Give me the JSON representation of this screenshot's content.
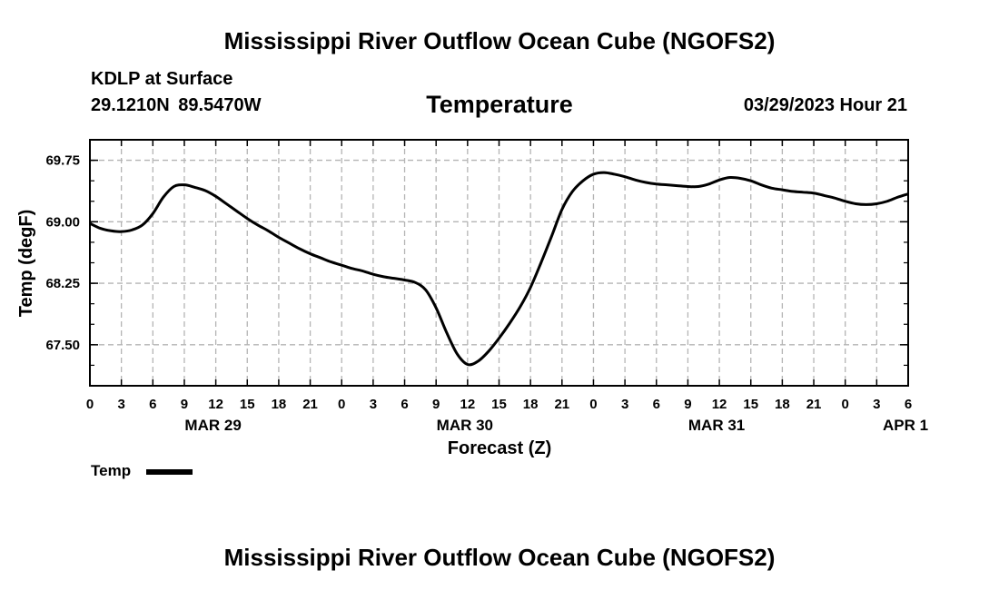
{
  "header": {
    "title_top": "Mississippi River Outflow Ocean Cube (NGOFS2)",
    "title_bottom": "Mississippi River Outflow Ocean Cube (NGOFS2)",
    "station": "KDLP at Surface",
    "coordinates": "29.1210N  89.5470W",
    "parameter": "Temperature",
    "datetime": "03/29/2023 Hour 21"
  },
  "legend": {
    "label": "Temp",
    "color": "#000000"
  },
  "chart_data": {
    "type": "line",
    "title": "Temperature",
    "xlabel": "Forecast (Z)",
    "ylabel": "Temp (degF)",
    "xlim": [
      0,
      78
    ],
    "ylim": [
      67.0,
      70.0
    ],
    "grid": true,
    "y_ticks": [
      67.5,
      68.25,
      69.0,
      69.75
    ],
    "y_tick_labels": [
      "67.50",
      "68.25",
      "69.00",
      "69.75"
    ],
    "x_ticks": [
      0,
      3,
      6,
      9,
      12,
      15,
      18,
      21,
      24,
      27,
      30,
      33,
      36,
      39,
      42,
      45,
      48,
      51,
      54,
      57,
      60,
      63,
      66,
      69,
      72,
      75,
      78
    ],
    "x_tick_labels": [
      "0",
      "3",
      "6",
      "9",
      "12",
      "15",
      "18",
      "21",
      "0",
      "3",
      "6",
      "9",
      "12",
      "15",
      "18",
      "21",
      "0",
      "3",
      "6",
      "9",
      "12",
      "15",
      "18",
      "21",
      "0",
      "3",
      "6"
    ],
    "date_labels": [
      {
        "x": 12,
        "label": "MAR 29"
      },
      {
        "x": 36,
        "label": "MAR 30"
      },
      {
        "x": 60,
        "label": "MAR 31"
      },
      {
        "x": 78,
        "label": "APR 1"
      }
    ],
    "series": [
      {
        "name": "Temp",
        "color": "#000000",
        "x": [
          0,
          1,
          2,
          3,
          4,
          5,
          6,
          7,
          8,
          9,
          10,
          11,
          12,
          13,
          14,
          15,
          16,
          17,
          18,
          19,
          20,
          21,
          22,
          23,
          24,
          25,
          26,
          27,
          28,
          29,
          30,
          31,
          32,
          33,
          34,
          35,
          36,
          37,
          38,
          39,
          40,
          41,
          42,
          43,
          44,
          45,
          46,
          47,
          48,
          49,
          50,
          51,
          52,
          53,
          54,
          55,
          56,
          57,
          58,
          59,
          60,
          61,
          62,
          63,
          64,
          65,
          66,
          67,
          68,
          69,
          70,
          71,
          72,
          73,
          74,
          75,
          76,
          77,
          78
        ],
        "values": [
          68.98,
          68.92,
          68.89,
          68.88,
          68.9,
          68.96,
          69.1,
          69.3,
          69.43,
          69.45,
          69.42,
          69.38,
          69.31,
          69.22,
          69.13,
          69.04,
          68.96,
          68.89,
          68.81,
          68.74,
          68.67,
          68.61,
          68.56,
          68.51,
          68.47,
          68.43,
          68.4,
          68.36,
          68.33,
          68.31,
          68.29,
          68.26,
          68.17,
          67.95,
          67.65,
          67.39,
          67.26,
          67.3,
          67.42,
          67.58,
          67.76,
          67.96,
          68.2,
          68.5,
          68.82,
          69.15,
          69.37,
          69.5,
          69.58,
          69.6,
          69.58,
          69.55,
          69.51,
          69.48,
          69.46,
          69.45,
          69.44,
          69.43,
          69.43,
          69.46,
          69.51,
          69.54,
          69.53,
          69.5,
          69.45,
          69.41,
          69.39,
          69.37,
          69.36,
          69.35,
          69.32,
          69.29,
          69.25,
          69.22,
          69.21,
          69.22,
          69.25,
          69.3,
          69.34
        ]
      }
    ]
  }
}
